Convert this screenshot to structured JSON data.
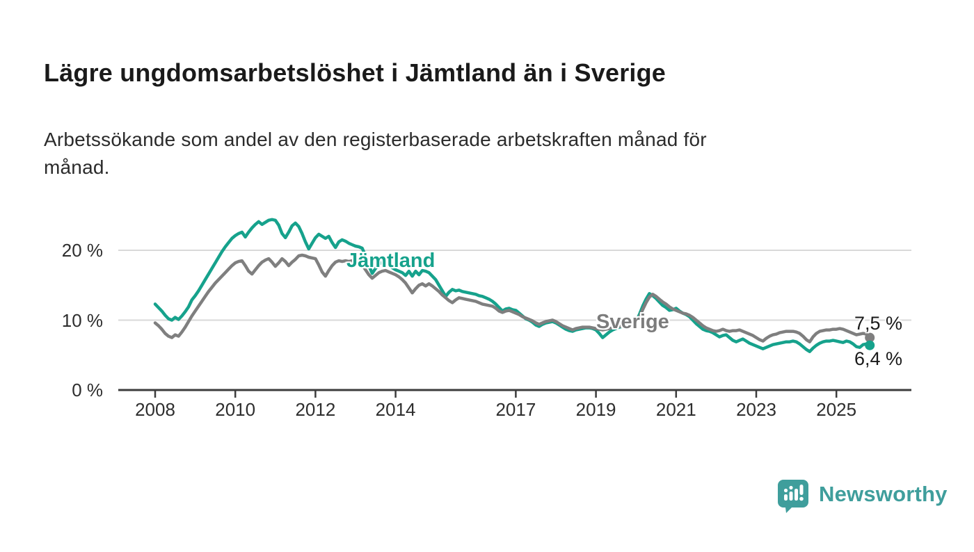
{
  "header": {
    "title": "Lägre ungdomsarbetslöshet i Jämtland än i Sverige",
    "subtitle": "Arbetssökande som andel av den registerbaserade arbetskraften månad för\nmånad."
  },
  "chart_data": {
    "type": "line",
    "title": "Lägre ungdomsarbetslöshet i Jämtland än i Sverige",
    "subtitle": "Arbetssökande som andel av den registerbaserade arbetskraften månad för månad.",
    "xlabel": "",
    "ylabel": "",
    "unit": "%",
    "grid": "horizontal-only",
    "legend_position": "inline-labels-on-lines",
    "x_start_year": 2008,
    "points_per_year": 12,
    "xlim": [
      2007.1,
      2026.9
    ],
    "ylim": [
      0,
      26
    ],
    "xticks": [
      2008,
      2010,
      2012,
      2014,
      2017,
      2019,
      2021,
      2023,
      2025
    ],
    "yticks": [
      {
        "value": 0,
        "label": "0 %"
      },
      {
        "value": 10,
        "label": "10 %"
      },
      {
        "value": 20,
        "label": "20 %"
      }
    ],
    "colors": {
      "jamtland_line": "#16a28c",
      "sverige_line": "#7f7f7f",
      "gridline": "#d9d9d9",
      "axis": "#3c3c3c",
      "text": "#2e2e2e"
    },
    "series": [
      {
        "name": "Jämtland",
        "color": "#16a28c",
        "end_label": "6,4 %",
        "end_value": 6.4,
        "values": [
          12.3,
          11.8,
          11.3,
          10.7,
          10.2,
          10.0,
          10.4,
          10.1,
          10.6,
          11.2,
          11.9,
          12.9,
          13.5,
          14.2,
          15.0,
          15.8,
          16.6,
          17.4,
          18.2,
          19.0,
          19.8,
          20.5,
          21.1,
          21.7,
          22.1,
          22.4,
          22.6,
          21.9,
          22.6,
          23.2,
          23.7,
          24.1,
          23.7,
          24.0,
          24.3,
          24.4,
          24.3,
          23.6,
          22.4,
          21.8,
          22.6,
          23.5,
          23.9,
          23.4,
          22.4,
          21.2,
          20.2,
          21.0,
          21.8,
          22.3,
          22.0,
          21.7,
          22.0,
          21.1,
          20.4,
          21.2,
          21.5,
          21.3,
          21.0,
          20.8,
          20.6,
          20.5,
          20.3,
          19.2,
          17.8,
          16.7,
          17.4,
          18.0,
          18.3,
          18.1,
          17.8,
          17.5,
          17.2,
          17.0,
          16.8,
          16.4,
          17.0,
          16.3,
          17.0,
          16.5,
          17.1,
          17.0,
          16.8,
          16.3,
          15.8,
          15.0,
          14.2,
          13.4,
          14.0,
          14.4,
          14.2,
          14.3,
          14.1,
          14.0,
          13.9,
          13.8,
          13.7,
          13.5,
          13.4,
          13.2,
          13.0,
          12.7,
          12.3,
          11.8,
          11.3,
          11.6,
          11.7,
          11.5,
          11.4,
          11.0,
          10.6,
          10.2,
          10.0,
          9.7,
          9.3,
          9.1,
          9.4,
          9.6,
          9.7,
          9.8,
          9.6,
          9.3,
          9.0,
          8.7,
          8.5,
          8.4,
          8.6,
          8.7,
          8.8,
          8.9,
          8.9,
          8.8,
          8.6,
          8.1,
          7.5,
          7.9,
          8.3,
          8.6,
          8.8,
          9.0,
          9.1,
          9.1,
          9.2,
          9.3,
          9.8,
          10.8,
          12.0,
          13.0,
          13.8,
          13.5,
          13.1,
          12.6,
          12.1,
          11.8,
          11.4,
          11.5,
          11.7,
          11.3,
          11.0,
          10.8,
          10.5,
          10.0,
          9.5,
          9.1,
          8.7,
          8.5,
          8.4,
          8.2,
          7.9,
          7.6,
          7.8,
          7.9,
          7.5,
          7.1,
          6.9,
          7.1,
          7.3,
          7.0,
          6.7,
          6.5,
          6.3,
          6.1,
          5.9,
          6.1,
          6.3,
          6.5,
          6.6,
          6.7,
          6.8,
          6.9,
          6.9,
          7.0,
          6.9,
          6.6,
          6.2,
          5.8,
          5.5,
          6.0,
          6.4,
          6.7,
          6.9,
          7.0,
          7.0,
          7.1,
          7.0,
          6.9,
          6.8,
          7.0,
          6.9,
          6.6,
          6.2,
          6.1,
          6.5,
          6.6,
          6.4
        ]
      },
      {
        "name": "Sverige",
        "color": "#7f7f7f",
        "end_label": "7,5 %",
        "end_value": 7.5,
        "values": [
          9.6,
          9.2,
          8.7,
          8.1,
          7.7,
          7.5,
          7.9,
          7.7,
          8.3,
          9.0,
          9.8,
          10.6,
          11.3,
          12.0,
          12.7,
          13.4,
          14.1,
          14.7,
          15.3,
          15.8,
          16.3,
          16.8,
          17.3,
          17.8,
          18.2,
          18.4,
          18.5,
          17.8,
          17.0,
          16.6,
          17.2,
          17.8,
          18.3,
          18.6,
          18.8,
          18.3,
          17.7,
          18.2,
          18.8,
          18.4,
          17.8,
          18.3,
          18.7,
          19.2,
          19.3,
          19.2,
          19.0,
          18.9,
          18.8,
          17.9,
          16.9,
          16.3,
          17.1,
          17.8,
          18.3,
          18.5,
          18.4,
          18.5,
          18.4,
          18.5,
          18.4,
          18.2,
          17.9,
          17.2,
          16.5,
          16.0,
          16.4,
          16.8,
          17.0,
          17.1,
          16.9,
          16.7,
          16.5,
          16.2,
          15.8,
          15.3,
          14.6,
          13.9,
          14.5,
          15.0,
          15.2,
          14.9,
          15.2,
          14.9,
          14.5,
          14.1,
          13.6,
          13.2,
          12.8,
          12.5,
          12.9,
          13.2,
          13.1,
          13.0,
          12.9,
          12.8,
          12.7,
          12.5,
          12.3,
          12.2,
          12.1,
          12.0,
          11.7,
          11.3,
          11.1,
          11.3,
          11.4,
          11.2,
          11.0,
          10.8,
          10.5,
          10.3,
          10.1,
          9.9,
          9.6,
          9.4,
          9.6,
          9.8,
          9.9,
          10.0,
          9.8,
          9.5,
          9.2,
          9.0,
          8.8,
          8.6,
          8.8,
          8.9,
          9.0,
          9.0,
          9.0,
          8.9,
          8.8,
          8.7,
          8.6,
          8.7,
          8.8,
          8.9,
          9.0,
          9.1,
          9.1,
          9.1,
          9.2,
          9.3,
          9.7,
          10.4,
          11.5,
          12.5,
          13.3,
          13.7,
          13.4,
          13.0,
          12.6,
          12.3,
          11.9,
          11.6,
          11.4,
          11.2,
          11.0,
          10.9,
          10.7,
          10.4,
          10.0,
          9.6,
          9.2,
          8.9,
          8.7,
          8.5,
          8.4,
          8.5,
          8.7,
          8.5,
          8.4,
          8.5,
          8.5,
          8.6,
          8.4,
          8.2,
          8.0,
          7.8,
          7.5,
          7.2,
          7.0,
          7.4,
          7.7,
          7.9,
          8.0,
          8.2,
          8.3,
          8.4,
          8.4,
          8.4,
          8.3,
          8.1,
          7.7,
          7.2,
          6.9,
          7.6,
          8.1,
          8.4,
          8.5,
          8.6,
          8.6,
          8.7,
          8.7,
          8.8,
          8.7,
          8.5,
          8.3,
          8.1,
          7.9,
          8.0,
          8.1,
          8.0,
          7.5
        ]
      }
    ]
  },
  "annotations": {
    "jamtland_label": "Jämtland",
    "sverige_label": "Sverige",
    "jamtland_end_label": "6,4 %",
    "sverige_end_label": "7,5 %"
  },
  "footer": {
    "brand": "Newsworthy",
    "brand_color": "#3f9e9c",
    "logo_icon": "bar-chart-speech-bubble"
  }
}
